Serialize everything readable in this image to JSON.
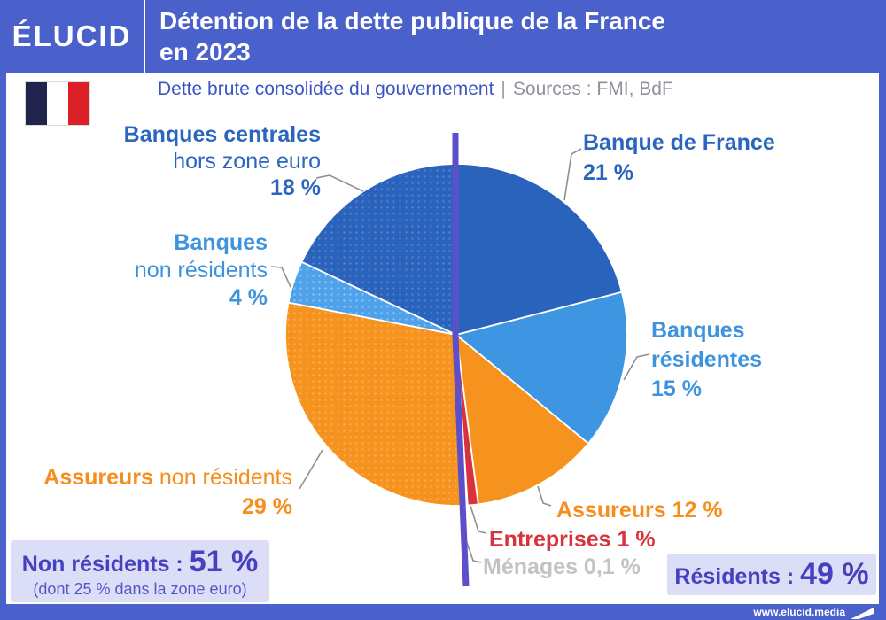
{
  "header": {
    "logo": "ÉLUCID",
    "title_line1": "Détention de la dette publique de la France",
    "title_line2": "en 2023"
  },
  "subtitle": {
    "text": "Dette brute consolidée du gouvernement",
    "separator": "|",
    "sources": "Sources : FMI, BdF"
  },
  "chart_data": {
    "type": "pie",
    "title": "Détention de la dette publique de la France en 2023",
    "units": "percent",
    "start_angle_deg": 0,
    "direction": "clockwise",
    "slices": [
      {
        "label": "Banque de France",
        "value": 21,
        "color": "#2A63BC",
        "dotted": false,
        "group": "résidents"
      },
      {
        "label": "Banques résidentes",
        "value": 15,
        "color": "#3E95E2",
        "dotted": false,
        "group": "résidents"
      },
      {
        "label": "Assureurs",
        "value": 12,
        "color": "#F6921E",
        "dotted": false,
        "group": "résidents"
      },
      {
        "label": "Entreprises",
        "value": 1,
        "color": "#D8323C",
        "dotted": false,
        "group": "résidents"
      },
      {
        "label": "Ménages",
        "value": 0.1,
        "color": "#C2C2C2",
        "dotted": false,
        "group": "résidents"
      },
      {
        "label": "Assureurs non résidents",
        "value": 29,
        "color": "#F6921E",
        "dotted": true,
        "dot_color": "#F9AD55",
        "group": "non résidents"
      },
      {
        "label": "Banques non résidents",
        "value": 4,
        "color": "#4FA2EA",
        "dotted": true,
        "dot_color": "#8AC4F2",
        "group": "non résidents"
      },
      {
        "label": "Banques centrales hors zone euro",
        "value": 18,
        "color": "#2A63BC",
        "dotted": true,
        "dot_color": "#5580CE",
        "group": "non résidents"
      }
    ],
    "totals": {
      "residents_pct": 49,
      "non_residents_pct": 51,
      "non_residents_eurozone_pct": 25
    }
  },
  "callouts": {
    "banques_centrales": {
      "line1": "Banques centrales",
      "line2": "hors zone euro",
      "value": "18 %"
    },
    "banques_non_residents": {
      "line1": "Banques",
      "line2": "non résidents",
      "value": "4 %"
    },
    "banque_de_france": {
      "line1": "Banque de France",
      "value": "21 %"
    },
    "banques_residentes": {
      "line1": "Banques",
      "line2": "résidentes",
      "value": "15 %"
    },
    "assureurs_non_residents": {
      "bold": "Assureurs",
      "rest": " non résidents",
      "value": "29 %"
    },
    "assureurs": "Assureurs 12 %",
    "entreprises": "Entreprises 1 %",
    "menages": "Ménages 0,1 %"
  },
  "summary": {
    "non_residents": {
      "label": "Non résidents : ",
      "value": "51 %",
      "note": "(dont 25 % dans la zone euro)"
    },
    "residents": {
      "label": "Résidents : ",
      "value": "49 %"
    }
  },
  "footer": {
    "website": "www.elucid.media"
  },
  "colors": {
    "frame_blue": "#4A60CB",
    "divider_purple": "#5B50C9",
    "dark_blue": "#2A63BC",
    "medium_blue": "#3E95E2",
    "light_blue": "#4FA2EA",
    "orange": "#F6921E",
    "red": "#D8323C",
    "gray": "#C2C2C2",
    "box_bg": "#DCDDF6",
    "box_text": "#4641C1",
    "leader_gray": "#8F8F8F"
  }
}
